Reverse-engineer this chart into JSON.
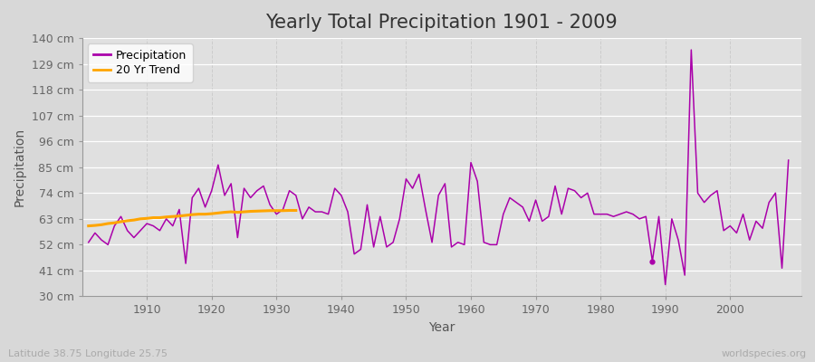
{
  "title": "Yearly Total Precipitation 1901 - 2009",
  "xlabel": "Year",
  "ylabel": "Precipitation",
  "lat_lon_label": "Latitude 38.75 Longitude 25.75",
  "source_label": "worldspecies.org",
  "ylim": [
    30,
    140
  ],
  "yticks": [
    30,
    41,
    52,
    63,
    74,
    85,
    96,
    107,
    118,
    129,
    140
  ],
  "ytick_labels": [
    "30 cm",
    "41 cm",
    "52 cm",
    "63 cm",
    "74 cm",
    "85 cm",
    "96 cm",
    "107 cm",
    "118 cm",
    "129 cm",
    "140 cm"
  ],
  "xlim": [
    1900,
    2011
  ],
  "xticks": [
    1910,
    1920,
    1930,
    1940,
    1950,
    1960,
    1970,
    1980,
    1990,
    2000
  ],
  "years": [
    1901,
    1902,
    1903,
    1904,
    1905,
    1906,
    1907,
    1908,
    1909,
    1910,
    1911,
    1912,
    1913,
    1914,
    1915,
    1916,
    1917,
    1918,
    1919,
    1920,
    1921,
    1922,
    1923,
    1924,
    1925,
    1926,
    1927,
    1928,
    1929,
    1930,
    1931,
    1932,
    1933,
    1934,
    1935,
    1936,
    1937,
    1938,
    1939,
    1940,
    1941,
    1942,
    1943,
    1944,
    1945,
    1946,
    1947,
    1948,
    1949,
    1950,
    1951,
    1952,
    1953,
    1954,
    1955,
    1956,
    1957,
    1958,
    1959,
    1960,
    1961,
    1962,
    1963,
    1964,
    1965,
    1966,
    1967,
    1968,
    1969,
    1970,
    1971,
    1972,
    1973,
    1974,
    1975,
    1976,
    1977,
    1978,
    1979,
    1980,
    1981,
    1982,
    1983,
    1984,
    1985,
    1986,
    1987,
    1988,
    1989,
    1990,
    1991,
    1992,
    1993,
    1994,
    1995,
    1996,
    1997,
    1998,
    1999,
    2000,
    2001,
    2002,
    2003,
    2004,
    2005,
    2006,
    2007,
    2008,
    2009
  ],
  "precip": [
    53,
    57,
    54,
    52,
    60,
    64,
    58,
    55,
    58,
    61,
    60,
    58,
    63,
    60,
    67,
    44,
    72,
    76,
    68,
    75,
    86,
    73,
    78,
    55,
    76,
    72,
    75,
    77,
    69,
    65,
    67,
    75,
    73,
    63,
    68,
    66,
    66,
    65,
    76,
    73,
    66,
    48,
    50,
    69,
    51,
    64,
    51,
    53,
    63,
    80,
    76,
    82,
    67,
    53,
    73,
    78,
    51,
    53,
    52,
    87,
    79,
    53,
    52,
    52,
    65,
    72,
    70,
    68,
    62,
    71,
    62,
    64,
    77,
    65,
    76,
    75,
    72,
    74,
    65,
    65,
    65,
    64,
    65,
    66,
    65,
    63,
    64,
    45,
    64,
    35,
    63,
    54,
    39,
    135,
    74,
    70,
    73,
    75,
    58,
    60,
    57,
    65,
    54,
    62,
    59,
    70,
    74,
    42,
    88
  ],
  "trend_years": [
    1901,
    1902,
    1903,
    1904,
    1905,
    1906,
    1907,
    1908,
    1909,
    1910,
    1911,
    1912,
    1913,
    1914,
    1915,
    1916,
    1917,
    1918,
    1919,
    1920,
    1921,
    1922,
    1923,
    1924,
    1925,
    1926,
    1927,
    1928,
    1929,
    1930,
    1931,
    1932,
    1933
  ],
  "trend_values": [
    60,
    60.2,
    60.5,
    61,
    61.3,
    61.8,
    62.2,
    62.5,
    63,
    63.2,
    63.5,
    63.5,
    63.8,
    64,
    64.2,
    64.5,
    64.8,
    65,
    65,
    65.2,
    65.5,
    65.8,
    66,
    65.8,
    66,
    66.2,
    66.3,
    66.4,
    66.5,
    66.5,
    66.5,
    66.6,
    66.6
  ],
  "precip_color": "#aa00aa",
  "trend_color": "#FFA500",
  "bg_color": "#d8d8d8",
  "plot_bg_color": "#e0e0e0",
  "grid_color_h": "#ffffff",
  "grid_color_v": "#cccccc",
  "title_fontsize": 15,
  "axis_label_fontsize": 10,
  "tick_fontsize": 9,
  "legend_fontsize": 9,
  "dot_year": 1988,
  "dot_value": 45,
  "dot_color": "#aa00aa"
}
